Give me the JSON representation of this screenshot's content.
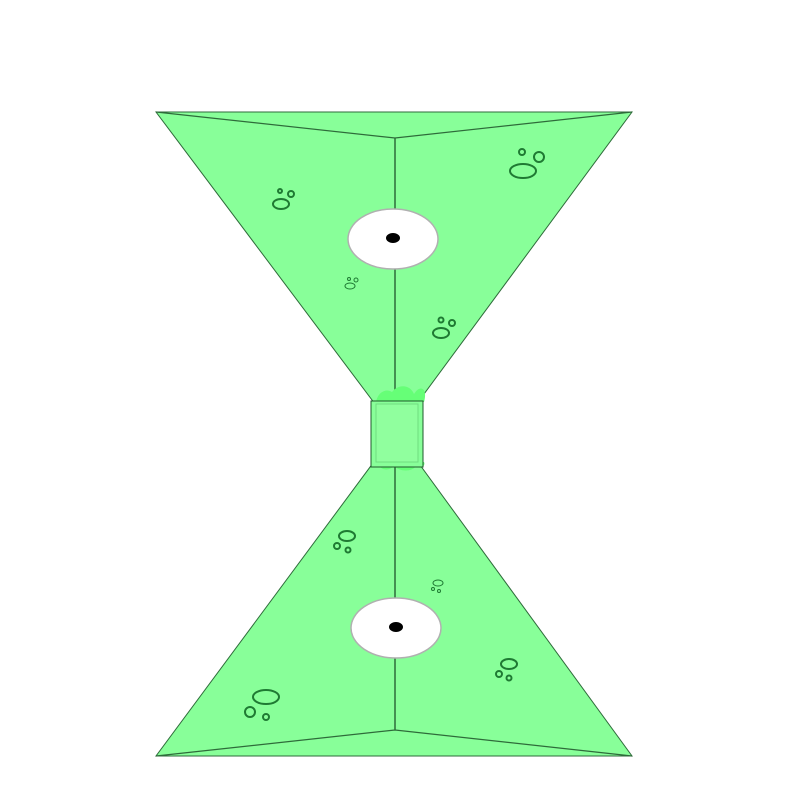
{
  "colors": {
    "background": "#ffffff",
    "body_fill": "#88ff99",
    "body_stroke": "#2e6b3a",
    "connector_fill": "#88ff99",
    "connector_stroke": "#1f5a2c",
    "blob_accent": "#66ff77",
    "spot_stroke": "#1f7a33",
    "eye_white": "#ffffff",
    "eye_outline": "#b0b0b0",
    "pupil": "#000000"
  },
  "icons": {
    "top_segment": "triangle-body-icon",
    "bottom_segment": "triangle-body-icon",
    "connector": "connector-joint-icon",
    "eye": "eye-icon"
  }
}
